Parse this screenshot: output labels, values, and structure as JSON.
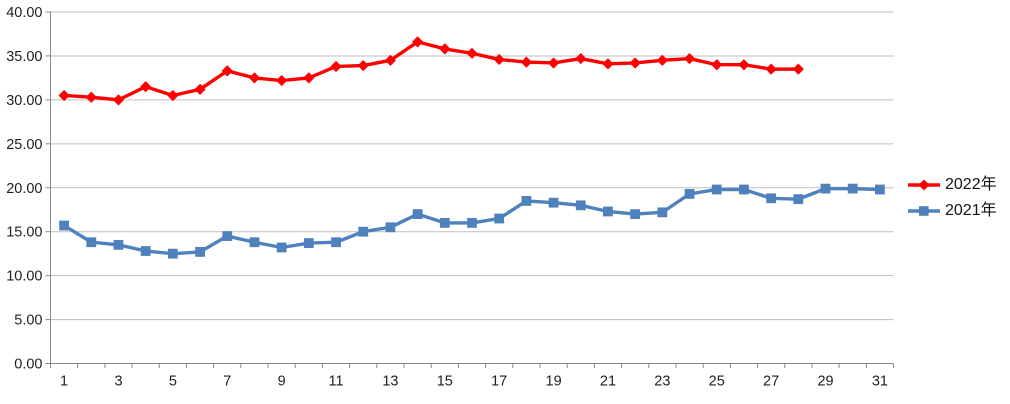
{
  "chart_data": {
    "type": "line",
    "title": "",
    "xlabel": "",
    "ylabel": "",
    "x_categories": [
      1,
      2,
      3,
      4,
      5,
      6,
      7,
      8,
      9,
      10,
      11,
      12,
      13,
      14,
      15,
      16,
      17,
      18,
      19,
      20,
      21,
      22,
      23,
      24,
      25,
      26,
      27,
      28,
      29,
      30,
      31
    ],
    "x_tick_labels": [
      "1",
      "3",
      "5",
      "7",
      "9",
      "11",
      "13",
      "15",
      "17",
      "19",
      "21",
      "23",
      "25",
      "27",
      "29",
      "31"
    ],
    "y_tick_labels": [
      "0.00",
      "5.00",
      "10.00",
      "15.00",
      "20.00",
      "25.00",
      "30.00",
      "35.00",
      "40.00"
    ],
    "ylim": [
      0,
      40
    ],
    "y_step": 5,
    "grid": "horizontal",
    "legend_position": "right",
    "series": [
      {
        "name": "2022年",
        "color": "#FF0000",
        "marker": "diamond",
        "values": [
          30.5,
          30.3,
          30.0,
          31.5,
          30.5,
          31.2,
          33.3,
          32.5,
          32.2,
          32.5,
          33.8,
          33.9,
          34.5,
          36.6,
          35.8,
          35.3,
          34.6,
          34.3,
          34.2,
          34.7,
          34.1,
          34.2,
          34.5,
          34.7,
          34.0,
          34.0,
          33.5,
          33.5
        ]
      },
      {
        "name": "2021年",
        "color": "#4F81BD",
        "marker": "square",
        "values": [
          15.7,
          13.8,
          13.5,
          12.8,
          12.5,
          12.7,
          14.5,
          13.8,
          13.2,
          13.7,
          13.8,
          15.0,
          15.5,
          17.0,
          16.0,
          16.0,
          16.5,
          18.5,
          18.3,
          18.0,
          17.3,
          17.0,
          17.2,
          19.3,
          19.8,
          19.8,
          18.8,
          18.7,
          19.9,
          19.9,
          19.8
        ]
      }
    ],
    "colors": {
      "gridline": "#BFBFBF",
      "axis": "#898989",
      "tick_label": "#1F1F1F",
      "background": "#FFFFFF"
    }
  }
}
